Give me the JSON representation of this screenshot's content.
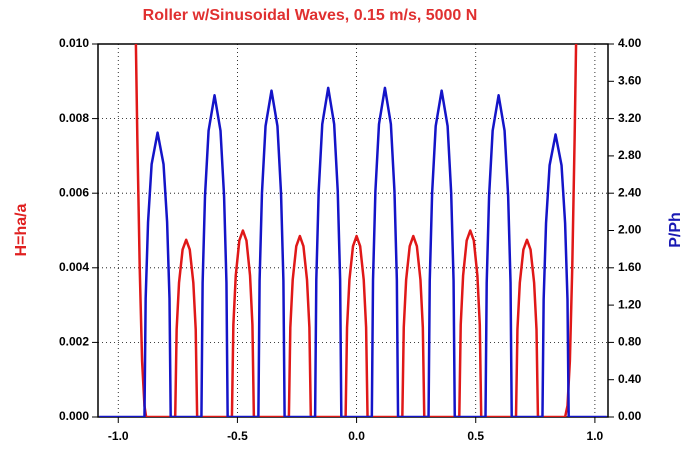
{
  "chart_data": {
    "type": "line",
    "title": "Roller w/Sinusoidal Waves, 0.15 m/s, 5000 N",
    "ylabel": "H=ha/a",
    "y2label": "P/Ph",
    "xlim": [
      -1.085,
      1.055
    ],
    "xticks": [
      {
        "value": -1,
        "label": "-1.0"
      },
      -0.5,
      {
        "value": 0,
        "label": "0.0"
      },
      0.5,
      {
        "value": 1,
        "label": "1.0"
      }
    ],
    "ylim": [
      0,
      0.01
    ],
    "yticks": [
      {
        "value": 0,
        "label": "0.000"
      },
      {
        "value": 0.002,
        "label": "0.002"
      },
      {
        "value": 0.004,
        "label": "0.004"
      },
      {
        "value": 0.006,
        "label": "0.006"
      },
      {
        "value": 0.008,
        "label": "0.008"
      },
      {
        "value": 0.01,
        "label": "0.010"
      }
    ],
    "y2lim": [
      0,
      4
    ],
    "y2ticks": [
      {
        "value": 0,
        "label": "0.00"
      },
      {
        "value": 0.4,
        "label": "0.40"
      },
      {
        "value": 0.8,
        "label": "0.80"
      },
      {
        "value": 1.2,
        "label": "1.20"
      },
      {
        "value": 1.6,
        "label": "1.60"
      },
      {
        "value": 2,
        "label": "2.00"
      },
      {
        "value": 2.4,
        "label": "2.40"
      },
      {
        "value": 2.8,
        "label": "2.80"
      },
      {
        "value": 3.2,
        "label": "3.20"
      },
      {
        "value": 3.6,
        "label": "3.60"
      },
      {
        "value": 4,
        "label": "4.00"
      }
    ],
    "grid": true,
    "title_color": "#e03030",
    "ylabel_color": "#e02020",
    "y2label_color": "#1a1ab4",
    "series": [
      {
        "color": "#e01818",
        "axis": "y",
        "x": [
          -0.926,
          -0.92,
          -0.91,
          -0.9,
          -0.89,
          -0.883,
          -0.761,
          -0.755,
          -0.745,
          -0.73,
          -0.715,
          -0.7,
          -0.685,
          -0.675,
          -0.669,
          -0.523,
          -0.517,
          -0.507,
          -0.492,
          -0.477,
          -0.462,
          -0.447,
          -0.437,
          -0.431,
          -0.284,
          -0.278,
          -0.268,
          -0.253,
          -0.238,
          -0.223,
          -0.208,
          -0.198,
          -0.192,
          -0.046,
          -0.04,
          -0.03,
          -0.015,
          0,
          0.015,
          0.03,
          0.04,
          0.046,
          0.192,
          0.198,
          0.208,
          0.223,
          0.238,
          0.253,
          0.268,
          0.278,
          0.284,
          0.431,
          0.437,
          0.447,
          0.462,
          0.477,
          0.492,
          0.507,
          0.517,
          0.523,
          0.669,
          0.675,
          0.685,
          0.7,
          0.715,
          0.73,
          0.745,
          0.755,
          0.761,
          0.875,
          0.885,
          0.895,
          0.905,
          0.915,
          0.921
        ],
        "values": [
          0.01,
          0.0075,
          0.004,
          0.0015,
          0.0003,
          0,
          0,
          0.00235,
          0.0036,
          0.00449,
          0.00475,
          0.00449,
          0.0036,
          0.00235,
          0,
          0,
          0.00247,
          0.00379,
          0.00473,
          0.005,
          0.00473,
          0.00379,
          0.00247,
          0,
          0,
          0.0024,
          0.00368,
          0.00458,
          0.00485,
          0.00458,
          0.00368,
          0.0024,
          0,
          0,
          0.0024,
          0.00368,
          0.00458,
          0.00485,
          0.00458,
          0.00368,
          0.0024,
          0,
          0,
          0.0024,
          0.00368,
          0.00458,
          0.00485,
          0.00458,
          0.00368,
          0.0024,
          0,
          0,
          0.00247,
          0.00379,
          0.00473,
          0.005,
          0.00473,
          0.00379,
          0.00247,
          0,
          0,
          0.00235,
          0.0036,
          0.00449,
          0.00475,
          0.00449,
          0.0036,
          0.00235,
          0,
          0,
          0.0003,
          0.0015,
          0.004,
          0.0075,
          0.01
        ]
      },
      {
        "color": "#1414c8",
        "axis": "y2",
        "x": [
          -1.08,
          -0.89,
          -0.885,
          -0.875,
          -0.86,
          -0.835,
          -0.81,
          -0.795,
          -0.785,
          -0.78,
          -0.651,
          -0.646,
          -0.636,
          -0.621,
          -0.596,
          -0.571,
          -0.556,
          -0.546,
          -0.541,
          -0.412,
          -0.407,
          -0.397,
          -0.382,
          -0.357,
          -0.332,
          -0.317,
          -0.307,
          -0.302,
          -0.174,
          -0.169,
          -0.159,
          -0.144,
          -0.119,
          -0.094,
          -0.079,
          -0.069,
          -0.064,
          0.064,
          0.069,
          0.079,
          0.094,
          0.119,
          0.144,
          0.159,
          0.169,
          0.174,
          0.302,
          0.307,
          0.317,
          0.332,
          0.357,
          0.382,
          0.397,
          0.407,
          0.412,
          0.541,
          0.546,
          0.556,
          0.571,
          0.596,
          0.621,
          0.636,
          0.646,
          0.651,
          0.78,
          0.785,
          0.795,
          0.81,
          0.835,
          0.86,
          0.875,
          0.885,
          0.89,
          1.05
        ],
        "values": [
          0,
          0,
          1.27,
          2.09,
          2.71,
          3.05,
          2.71,
          2.09,
          1.27,
          0,
          0,
          1.44,
          2.37,
          3.07,
          3.45,
          3.07,
          2.37,
          1.44,
          0,
          0,
          1.46,
          2.4,
          3.12,
          3.5,
          3.12,
          2.4,
          1.46,
          0,
          0,
          1.47,
          2.42,
          3.14,
          3.53,
          3.14,
          2.42,
          1.47,
          0,
          0,
          1.47,
          2.42,
          3.14,
          3.53,
          3.14,
          2.42,
          1.47,
          0,
          0,
          1.46,
          2.4,
          3.12,
          3.5,
          3.12,
          2.4,
          1.46,
          0,
          0,
          1.44,
          2.37,
          3.07,
          3.45,
          3.07,
          2.37,
          1.44,
          0,
          0,
          1.26,
          2.08,
          2.7,
          3.03,
          2.7,
          2.08,
          1.26,
          0,
          0
        ]
      }
    ]
  }
}
